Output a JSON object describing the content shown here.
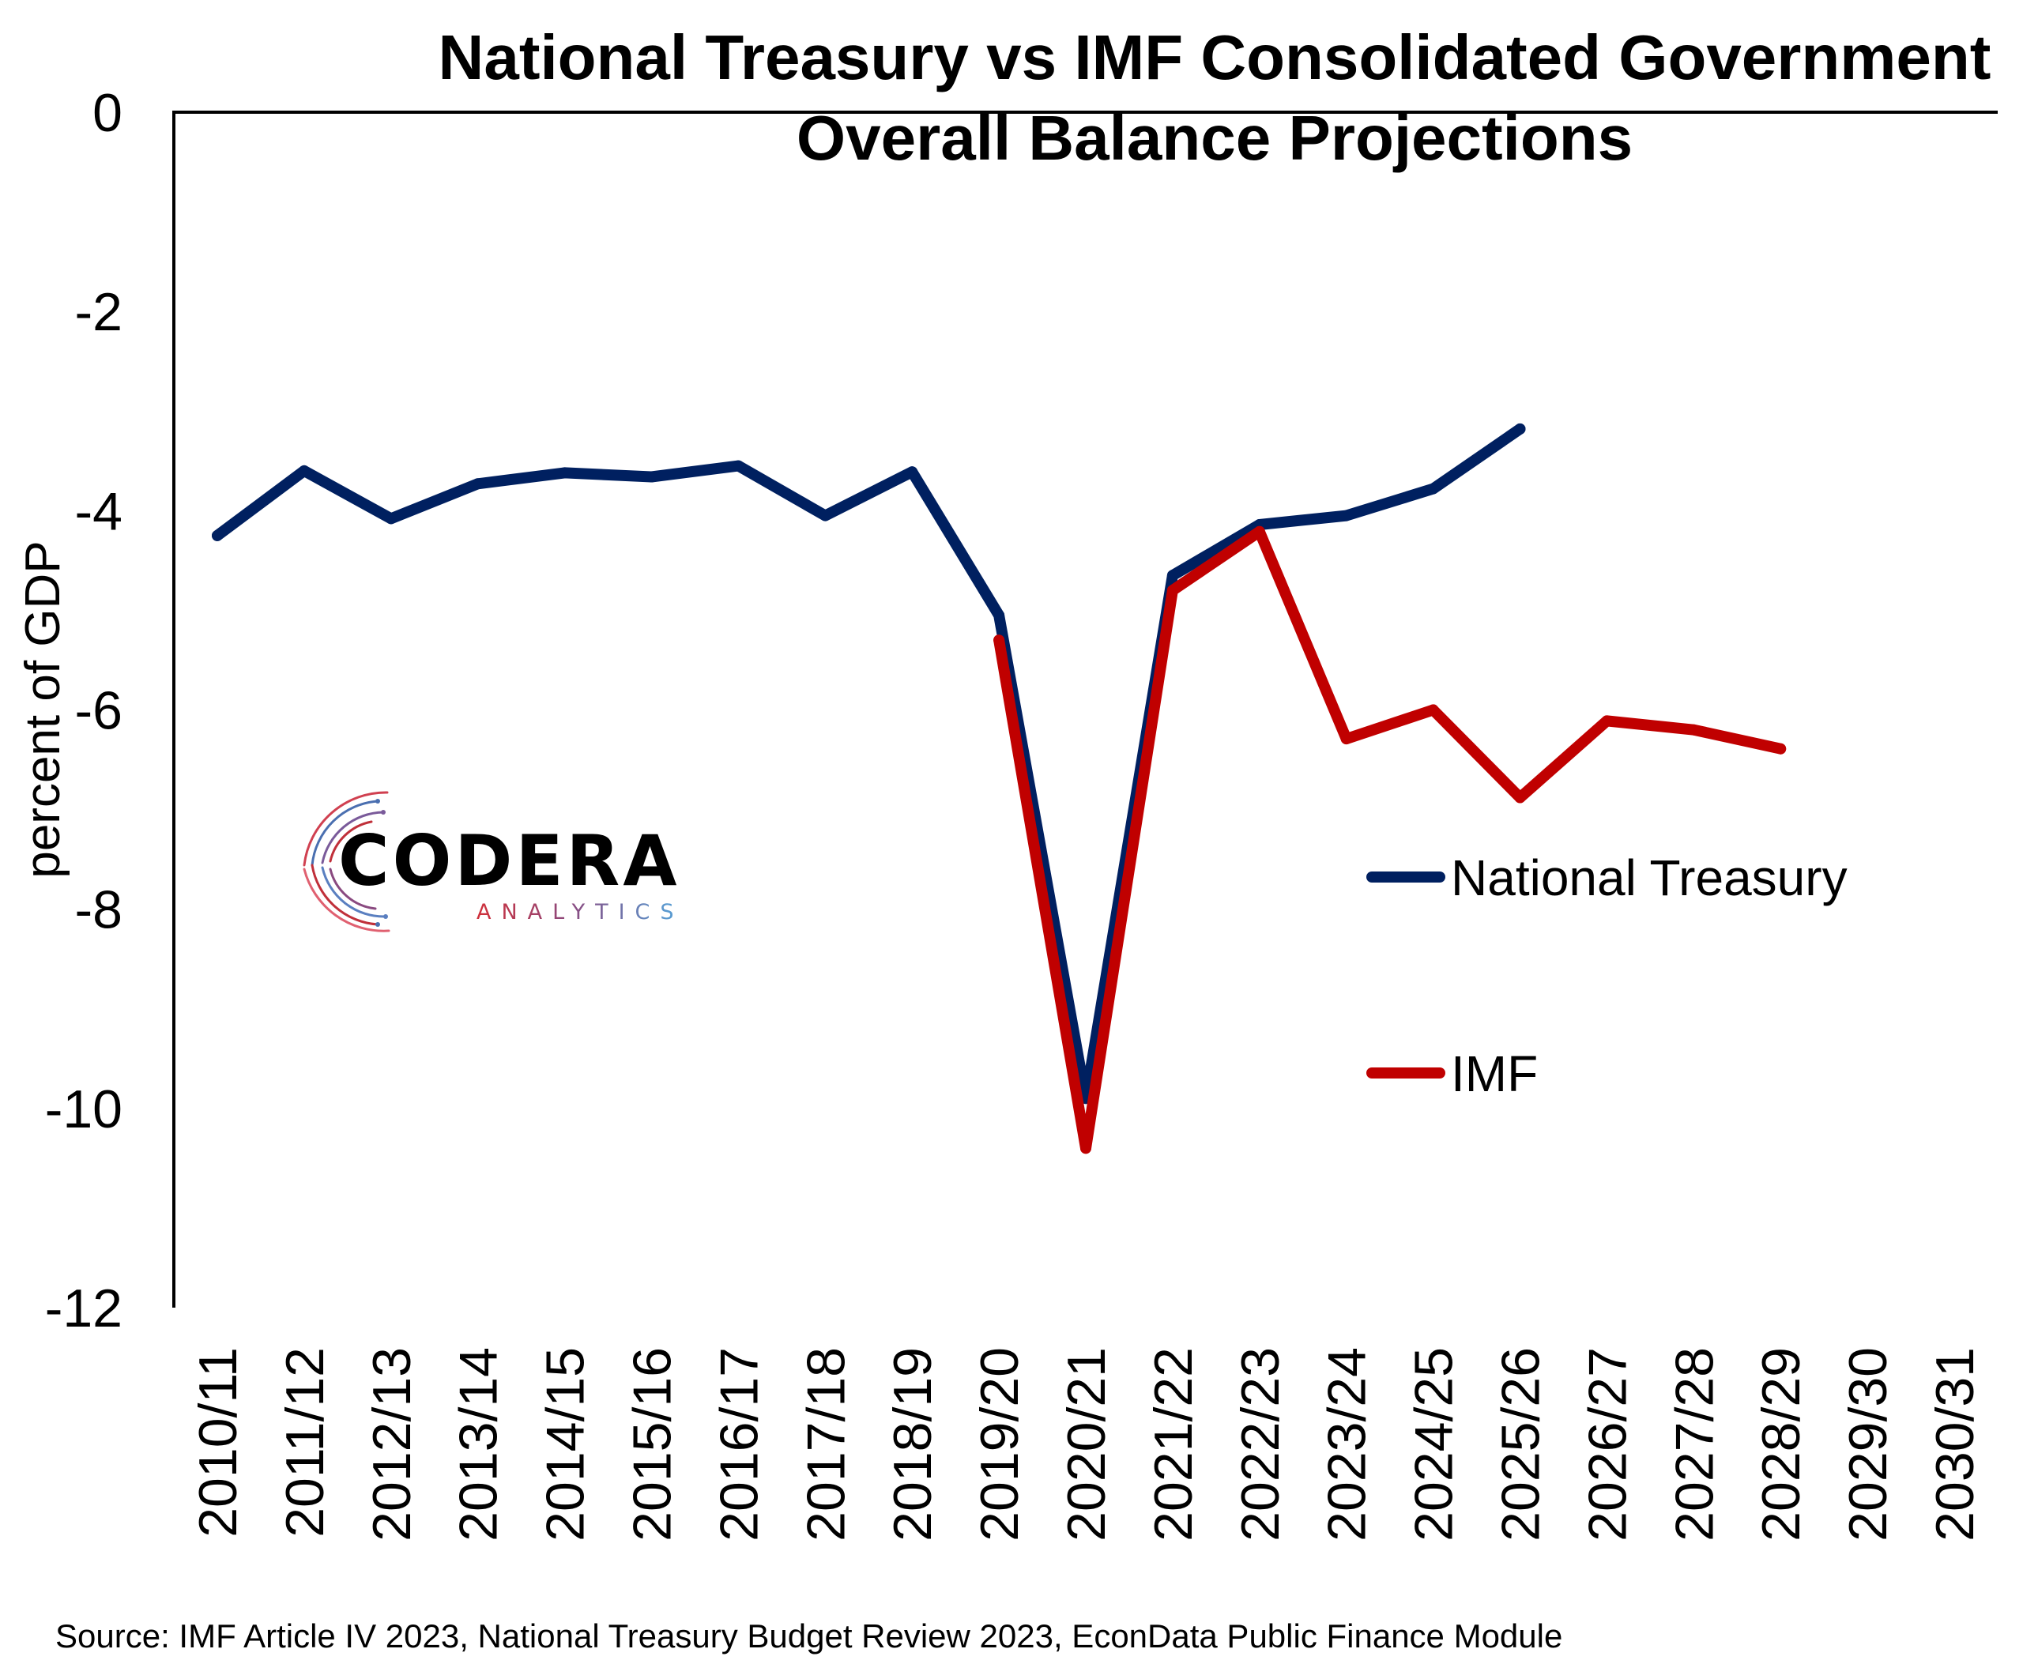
{
  "chart_data": {
    "type": "line",
    "title": "National Treasury vs IMF Consolidated Government Overall Balance Projections",
    "title_lines": [
      "National Treasury vs IMF Consolidated Government",
      "Overall Balance Projections"
    ],
    "xlabel": "",
    "ylabel": "percent of GDP",
    "ylim": [
      -12,
      0
    ],
    "yticks": [
      0,
      -2,
      -4,
      -6,
      -8,
      -10,
      -12
    ],
    "ytick_labels": [
      "0",
      "-2",
      "-4",
      "-6",
      "-8",
      "-10",
      "-12"
    ],
    "grid": false,
    "legend_position": "right",
    "categories": [
      "2010/11",
      "2011/12",
      "2012/13",
      "2013/14",
      "2014/15",
      "2015/16",
      "2016/17",
      "2017/18",
      "2018/19",
      "2019/20",
      "2020/21",
      "2021/22",
      "2022/23",
      "2023/24",
      "2024/25",
      "2025/26",
      "2026/27",
      "2027/28",
      "2028/29",
      "2029/30",
      "2030/31"
    ],
    "series": [
      {
        "name": "National Treasury",
        "color": "#002060",
        "values": [
          -4.25,
          -3.6,
          -4.08,
          -3.73,
          -3.62,
          -3.66,
          -3.55,
          -4.05,
          -3.61,
          -5.05,
          -9.9,
          -4.65,
          -4.14,
          -4.05,
          -3.78,
          -3.18,
          null,
          null,
          null,
          null,
          null
        ]
      },
      {
        "name": "IMF",
        "color": "#C00000",
        "values": [
          null,
          null,
          null,
          null,
          null,
          null,
          null,
          null,
          null,
          -5.3,
          -10.4,
          -4.8,
          -4.21,
          -6.29,
          -6.0,
          -6.88,
          -6.11,
          -6.2,
          -6.39,
          null,
          null
        ]
      }
    ],
    "source": "Source: IMF Article IV 2023, National Treasury Budget Review 2023, EconData Public Finance Module"
  },
  "logo": {
    "name": "CODERA",
    "subtitle": "ANALYTICS"
  }
}
